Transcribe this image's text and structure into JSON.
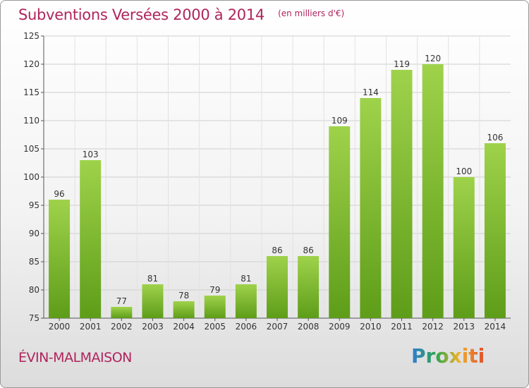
{
  "title": "Subventions Versées 2000 à 2014",
  "subtitle": "(en milliers d'€)",
  "city": "ÉVIN-MALMAISON",
  "logo": "Proxiti",
  "colors": {
    "accent": "#b0245b",
    "bar_top": "#9fd24b",
    "bar_bottom": "#5e9d19"
  },
  "chart_data": {
    "type": "bar",
    "categories": [
      "2000",
      "2001",
      "2002",
      "2003",
      "2004",
      "2005",
      "2006",
      "2007",
      "2008",
      "2009",
      "2010",
      "2011",
      "2012",
      "2013",
      "2014"
    ],
    "values": [
      96,
      103,
      77,
      81,
      78,
      79,
      81,
      86,
      86,
      109,
      114,
      119,
      120,
      100,
      106
    ],
    "ylim": [
      75,
      125
    ],
    "yticks": [
      75,
      80,
      85,
      90,
      95,
      100,
      105,
      110,
      115,
      120,
      125
    ],
    "grid": true,
    "data_labels": true
  }
}
